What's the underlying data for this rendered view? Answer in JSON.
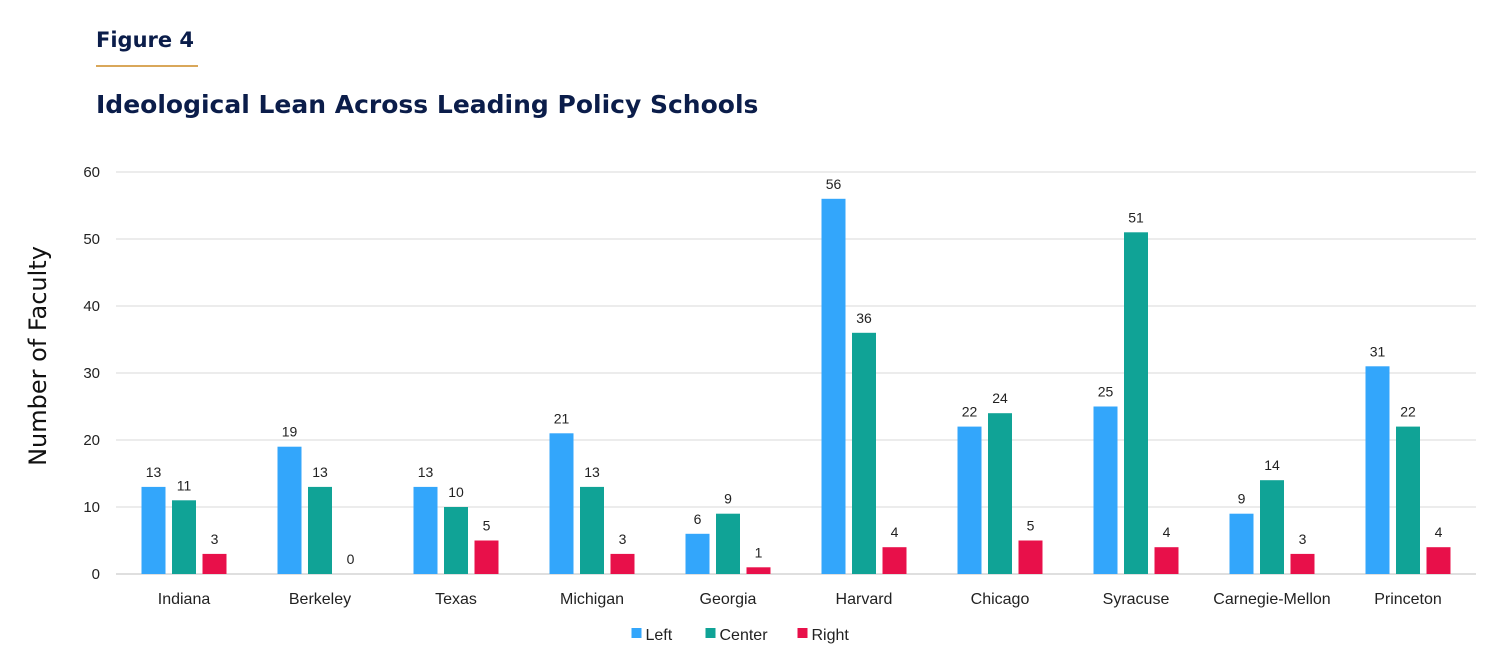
{
  "figure_label": "Figure 4",
  "colors": {
    "accent_rule": "#d9a75a",
    "title": "#0b1d4a",
    "gridline": "#d9d9d9"
  },
  "chart_data": {
    "type": "bar",
    "title": "Ideological Lean Across Leading Policy Schools",
    "xlabel": "",
    "ylabel": "Number of Faculty",
    "ylim": [
      0,
      60
    ],
    "yticks": [
      0,
      10,
      20,
      30,
      40,
      50,
      60
    ],
    "grid": true,
    "legend": "bottom-center",
    "categories": [
      "Indiana",
      "Berkeley",
      "Texas",
      "Michigan",
      "Georgia",
      "Harvard",
      "Chicago",
      "Syracuse",
      "Carnegie-Mellon",
      "Princeton"
    ],
    "series": [
      {
        "name": "Left",
        "color": "#33a6fb",
        "values": [
          13,
          19,
          13,
          21,
          6,
          56,
          22,
          25,
          9,
          31
        ],
        "labels": [
          "13",
          "19",
          "13",
          "21",
          "6",
          "56",
          "22",
          "25",
          "9",
          "31"
        ]
      },
      {
        "name": "Center",
        "color": "#10a396",
        "values": [
          11,
          13,
          10,
          13,
          9,
          36,
          24,
          51,
          14,
          22
        ],
        "labels": [
          "11",
          "13",
          "10",
          "13",
          "9",
          "36",
          "24",
          "51",
          "14",
          "22"
        ]
      },
      {
        "name": "Right",
        "color": "#e8104a",
        "values": [
          3,
          0,
          5,
          3,
          1,
          4,
          5,
          4,
          3,
          4
        ],
        "labels": [
          "3",
          "0",
          "5",
          "3",
          "1",
          "4",
          "5",
          "4",
          "3",
          "4"
        ]
      }
    ]
  }
}
